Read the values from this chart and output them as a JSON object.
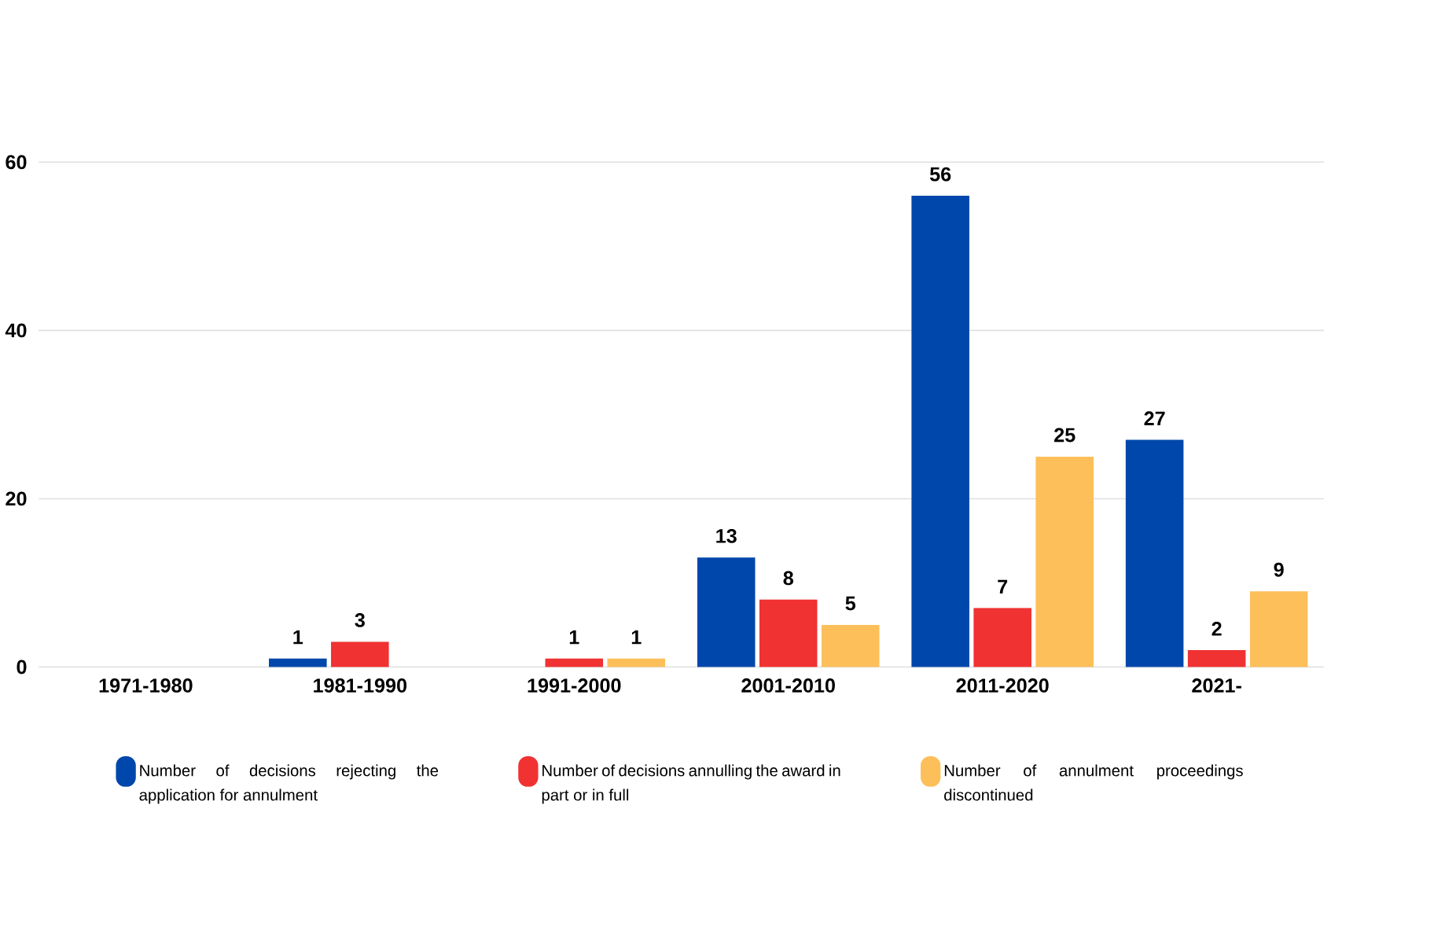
{
  "chart_data": {
    "type": "bar",
    "categories": [
      "1971-1980",
      "1981-1990",
      "1991-2000",
      "2001-2010",
      "2011-2020",
      "2021-"
    ],
    "series": [
      {
        "name": "Number of decisions rejecting the application for annulment",
        "color": "#0047ab",
        "values": [
          null,
          1,
          null,
          13,
          56,
          27
        ]
      },
      {
        "name": "Number of decisions annulling the award in part or in full",
        "color": "#f03232",
        "values": [
          null,
          3,
          1,
          8,
          7,
          2
        ]
      },
      {
        "name": "Number of annulment proceedings discontinued",
        "color": "#fcbf5a",
        "values": [
          null,
          null,
          1,
          5,
          25,
          9
        ]
      }
    ],
    "ylim": [
      0,
      60
    ],
    "yticks": [
      0,
      20,
      40,
      60
    ],
    "grid": "y",
    "legend": "bottom",
    "data_labels": true
  }
}
